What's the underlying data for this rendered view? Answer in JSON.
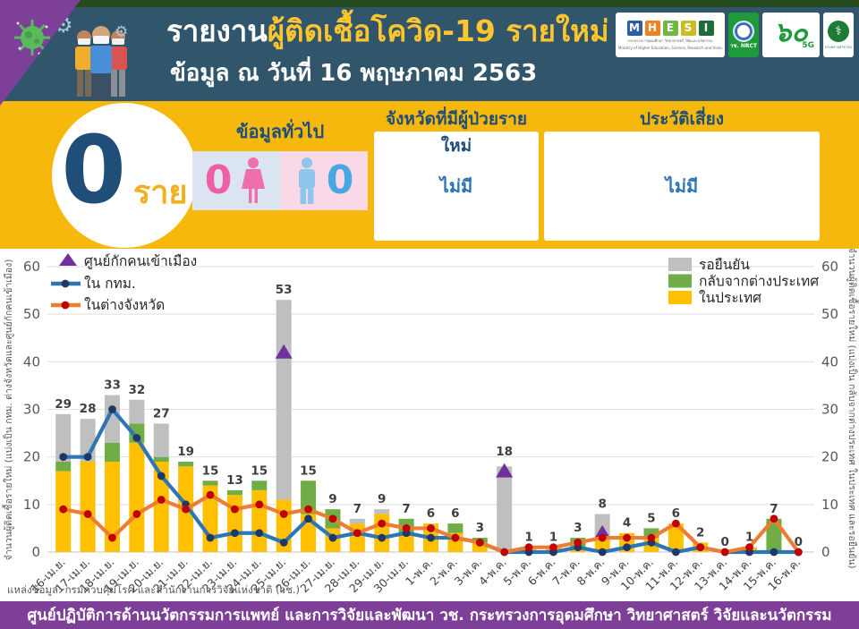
{
  "header": {
    "title_prefix": "รายงาน",
    "title_highlight": "ผู้ติดเชื้อโควิด-19 รายใหม่",
    "subtitle": "ข้อมูล ณ วันที่ 16 พฤษภาคม 2563",
    "logos": {
      "mhesi_letters": [
        "M",
        "H",
        "E",
        "S",
        "I"
      ],
      "mhesi_caption_th": "กระทรวงการอุดมศึกษา วิทยาศาสตร์ วิจัยและนวัตกรรม",
      "mhesi_caption_en": "Ministry of Higher Education, Science, Research and Innovation",
      "nrct_line1": "วช.",
      "nrct_line2": "NRCT",
      "sixty": "๖๐",
      "sixty_sub": "5G",
      "moph_caption": "กระทรวงสาธารณสุข"
    }
  },
  "summary": {
    "count": "0",
    "unit": "ราย",
    "general_info_label": "ข้อมูลทั่วไป",
    "female_count": "0",
    "male_count": "0",
    "provinces_header": "จังหวัดที่มีผู้ป่วยรายใหม่",
    "provinces_value": "ไม่มี",
    "risk_header": "ประวัติเสี่ยง",
    "risk_value": "ไม่มี"
  },
  "chart_data": {
    "type": "bar",
    "subtype": "stacked bars + two lines + triangle markers",
    "categories": [
      "16-เม.ย.",
      "17-เม.ย.",
      "18-เม.ย.",
      "19-เม.ย.",
      "20-เม.ย.",
      "21-เม.ย.",
      "22-เม.ย.",
      "23-เม.ย.",
      "24-เม.ย.",
      "25-เม.ย.",
      "26-เม.ย.",
      "27-เม.ย.",
      "28-เม.ย.",
      "29-เม.ย.",
      "30-เม.ย.",
      "1-พ.ค.",
      "2-พ.ค.",
      "3-พ.ค.",
      "4-พ.ค.",
      "5-พ.ค.",
      "6-พ.ค.",
      "7-พ.ค.",
      "8-พ.ค.",
      "9-พ.ค.",
      "10-พ.ค.",
      "11-พ.ค.",
      "12-พ.ค.",
      "13-พ.ค.",
      "14-พ.ค.",
      "15-พ.ค.",
      "16-พ.ค."
    ],
    "totals": [
      29,
      28,
      33,
      32,
      27,
      19,
      15,
      13,
      15,
      53,
      15,
      9,
      7,
      9,
      7,
      6,
      6,
      3,
      18,
      1,
      1,
      3,
      8,
      4,
      5,
      6,
      2,
      0,
      1,
      7,
      0
    ],
    "series": [
      {
        "key": "in-country",
        "name": "ในประเทศ",
        "type": "bar",
        "color": "#FFC000",
        "values": [
          17,
          19,
          19,
          23,
          19,
          18,
          14,
          12,
          13,
          11,
          8,
          5,
          6,
          8,
          4,
          6,
          4,
          2,
          0,
          1,
          1,
          1,
          3,
          4,
          3,
          6,
          2,
          0,
          1,
          0,
          0
        ]
      },
      {
        "key": "from-abroad",
        "name": "กลับจากต่างประเทศ",
        "type": "bar",
        "color": "#70AD47",
        "values": [
          2,
          0,
          4,
          4,
          1,
          1,
          1,
          1,
          2,
          0,
          7,
          4,
          0,
          0,
          3,
          0,
          2,
          1,
          0,
          0,
          0,
          2,
          0,
          0,
          2,
          0,
          0,
          0,
          0,
          7,
          0
        ]
      },
      {
        "key": "pending",
        "name": "รอยืนยัน",
        "type": "bar",
        "color": "#BFBFBF",
        "values": [
          10,
          9,
          10,
          5,
          7,
          0,
          0,
          0,
          0,
          42,
          0,
          0,
          1,
          1,
          0,
          0,
          0,
          0,
          18,
          0,
          0,
          0,
          5,
          0,
          0,
          0,
          0,
          0,
          0,
          0,
          0
        ]
      },
      {
        "key": "bangkok",
        "name": "ใน กทม.",
        "type": "line",
        "color": "#2E75B6",
        "marker": "#1F3864",
        "values": [
          20,
          20,
          30,
          24,
          16,
          10,
          3,
          4,
          4,
          2,
          7,
          3,
          4,
          3,
          4,
          3,
          3,
          2,
          0,
          0,
          0,
          1,
          0,
          1,
          2,
          0,
          1,
          0,
          0,
          0,
          0
        ]
      },
      {
        "key": "provinces",
        "name": "ในต่างจังหวัด",
        "type": "line",
        "color": "#ED7D31",
        "marker": "#C00000",
        "values": [
          9,
          8,
          3,
          8,
          11,
          9,
          12,
          9,
          10,
          8,
          9,
          7,
          4,
          6,
          5,
          5,
          3,
          2,
          0,
          1,
          1,
          2,
          3,
          3,
          3,
          6,
          1,
          0,
          1,
          7,
          0
        ]
      },
      {
        "key": "detention",
        "name": "ศูนย์กักคนเข้าเมือง",
        "type": "triangle",
        "color": "#7030A0",
        "points": [
          {
            "category": "25-เม.ย.",
            "value": 42
          },
          {
            "category": "4-พ.ค.",
            "value": 17
          },
          {
            "category": "8-พ.ค.",
            "value": 4
          }
        ]
      }
    ],
    "ylim": [
      0,
      60
    ],
    "yticks": [
      0,
      10,
      20,
      30,
      40,
      50,
      60
    ],
    "grid": true,
    "ylabel_left": "จำนวนผู้ติดเชื้อรายใหม่ (แบ่งเป็น กทม. ต่างจังหวัดและศูนย์กักคนเข้าเมือง)",
    "ylabel_right": "จำนวนผู้ติดเชื้อรายใหม่ (แบ่งเป็น กลับจากต่างประเทศ ในประเทศ และรอยืนยัน)",
    "legend_left": [
      {
        "label": "ศูนย์กักคนเข้าเมือง",
        "type": "triangle",
        "color": "#7030A0"
      },
      {
        "label": "ใน กทม.",
        "type": "line",
        "color": "#2E75B6",
        "marker": "#1F3864"
      },
      {
        "label": "ในต่างจังหวัด",
        "type": "line",
        "color": "#ED7D31",
        "marker": "#C00000"
      }
    ],
    "legend_right": [
      {
        "label": "รอยืนยัน",
        "color": "#BFBFBF"
      },
      {
        "label": "กลับจากต่างประเทศ",
        "color": "#70AD47"
      },
      {
        "label": "ในประเทศ",
        "color": "#FFC000"
      }
    ],
    "legend_position": "top-left and top-right inside plot"
  },
  "source_note": "แหล่งข้อมูล: กรมควบคุมโรค และสำนักงานการวิจัยแห่งชาติ (วช.)",
  "footer": "ศูนย์ปฏิบัติการด้านนวัตกรรมการแพทย์ และการวิจัยและพัฒนา  วช.   กระทรวงการอุดมศึกษา วิทยาศาสตร์ วิจัยและนวัตกรรม",
  "colors": {
    "band_yellow": "#F6B80D",
    "header_blue": "#31566B",
    "top_strip_green": "#254A1E",
    "purple": "#7D3F98",
    "count_navy": "#1F4E79",
    "bar_yellow": "#FFC000",
    "bar_green": "#70AD47",
    "bar_gray": "#BFBFBF",
    "line_blue": "#2E75B6",
    "line_orange": "#ED7D31",
    "triangle_purple": "#7030A0",
    "female_pink": "#EF5FA7",
    "male_blue": "#4AA8E0"
  }
}
